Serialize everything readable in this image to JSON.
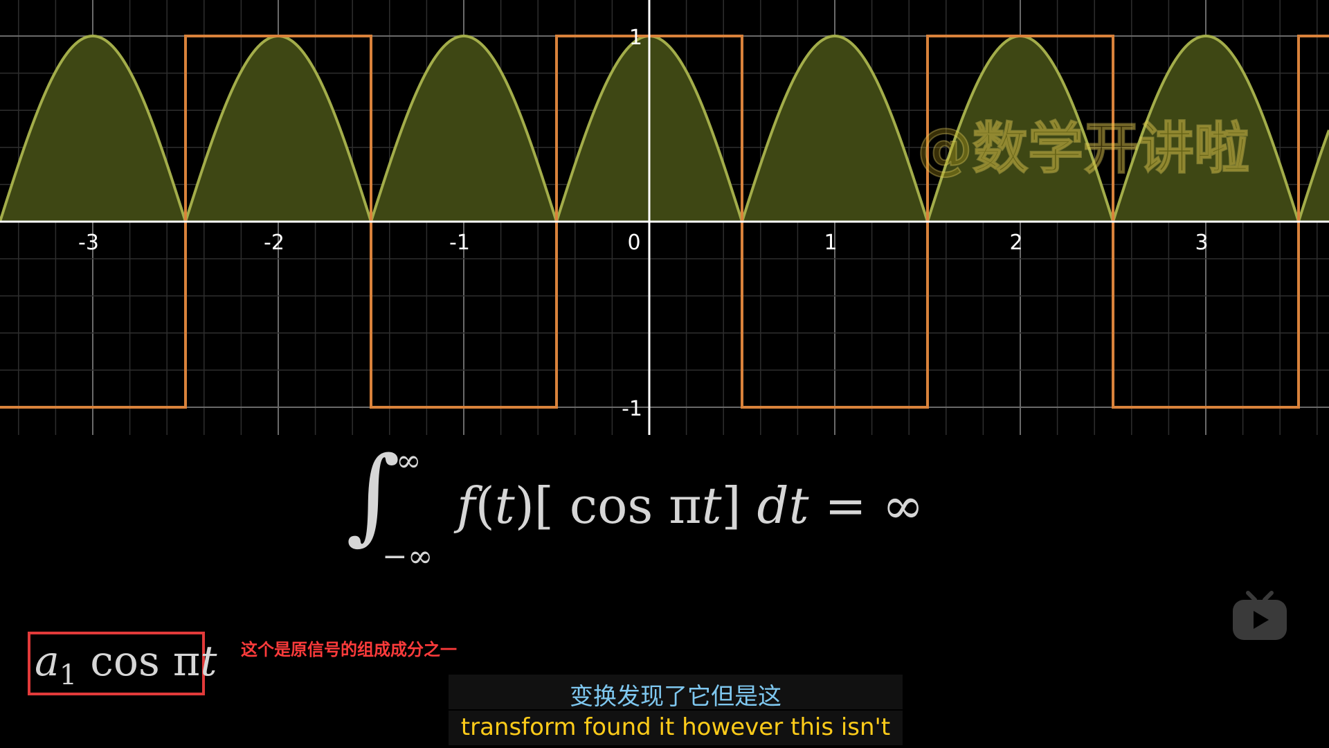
{
  "chart_data": {
    "type": "line",
    "xlim": [
      -3.5,
      3.65
    ],
    "ylim": [
      -1.15,
      1.15
    ],
    "x_ticks": [
      "-3",
      "-2",
      "-1",
      "0",
      "1",
      "2",
      "3"
    ],
    "y_ticks": [
      "1",
      "-1"
    ],
    "grid": true,
    "series": [
      {
        "kind": "square-wave",
        "period": 2,
        "phase": "high for |t| < 0.5",
        "amplitude": 1
      },
      {
        "kind": "rectified-cosine",
        "function": "max(0, f(t)·cos(pi t))",
        "filled": true
      }
    ],
    "colors": {
      "square": "#d9823b",
      "cosine": "#a3ad4a",
      "fill": "#3e4714",
      "axis": "#ffffff",
      "grid": "#555555"
    }
  },
  "formula": {
    "integral_sign": "∫",
    "upper": "∞",
    "lower": "−∞",
    "f": "f",
    "open_paren": "(",
    "t": "t",
    "close_paren": ")[ cos π",
    "t2": "t",
    "close_bracket": "]  ",
    "d": "dt",
    "rest": " = ∞"
  },
  "component": {
    "a": "a",
    "sub": "1",
    "cos": " cos π",
    "t": "t",
    "note": "这个是原信号的组成成分之一"
  },
  "subtitles": {
    "chinese": "变换发现了它但是这",
    "english": "transform found it however this isn't"
  },
  "watermark": "@数学开讲啦",
  "icons": {
    "player": "tv-play-icon"
  }
}
